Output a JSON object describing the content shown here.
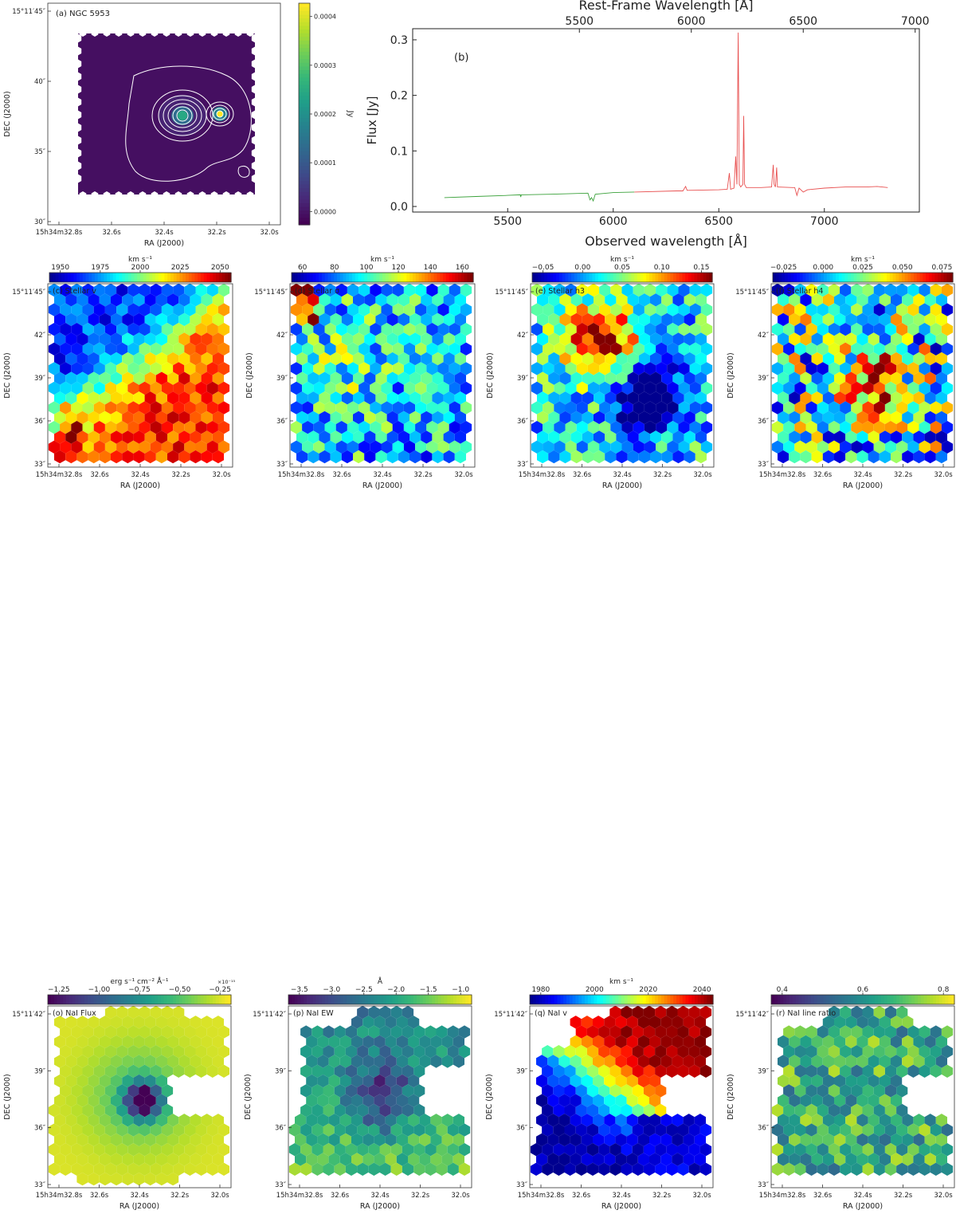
{
  "figure": "astro-multipanel",
  "colors": {
    "viridis": [
      "#440154",
      "#482878",
      "#3e4a89",
      "#31688e",
      "#26828e",
      "#1f9e89",
      "#35b779",
      "#6ece58",
      "#b5de2b",
      "#fde725"
    ],
    "jet": [
      "#00008f",
      "#0000ff",
      "#0080ff",
      "#00ffff",
      "#80ff80",
      "#ffff00",
      "#ff8000",
      "#ff0000",
      "#800000"
    ],
    "spectrum_blue_side": "#3aa13a",
    "spectrum_red_side": "#e85050",
    "contour": "#ffffff"
  },
  "chart_data": [
    {
      "id": "a",
      "type": "heatmap",
      "title": "(a) NGC 5953",
      "xlabel": "RA (J2000)",
      "ylabel": "DEC (J2000)",
      "xticks": [
        "15h34m32.8s",
        "32.6s",
        "32.4s",
        "32.2s",
        "32.0s"
      ],
      "yticks": [
        "15°11′45″",
        "40″",
        "35″",
        "30″"
      ],
      "colorbar": {
        "label": "Jy",
        "ticks": [
          "0.0000",
          "0.0001",
          "0.0002",
          "0.0003",
          "0.0004"
        ],
        "range": [
          0,
          0.00045
        ],
        "cmap": "viridis",
        "orientation": "vertical"
      },
      "contours": true
    },
    {
      "id": "b",
      "type": "line",
      "title": "(b)",
      "xlabel": "Observed wavelength [Å]",
      "ylabel": "Flux [Jy]",
      "top_xlabel": "Rest-Frame Wavelength [Å]",
      "xticks": [
        "5500",
        "6000",
        "6500",
        "7000"
      ],
      "top_xticks": [
        "5500",
        "6000",
        "6500",
        "7000"
      ],
      "yticks": [
        "0.0",
        "0.1",
        "0.2",
        "0.3"
      ],
      "xlim": [
        5050,
        7450
      ],
      "ylim": [
        -0.01,
        0.32
      ],
      "series": [
        {
          "color": "#3aa13a",
          "points": [
            [
              5200,
              0.016
            ],
            [
              5350,
              0.018
            ],
            [
              5500,
              0.02
            ],
            [
              5560,
              0.021
            ],
            [
              5562,
              0.017
            ],
            [
              5564,
              0.021
            ],
            [
              5700,
              0.022
            ],
            [
              5880,
              0.024
            ],
            [
              5890,
              0.012
            ],
            [
              5897,
              0.016
            ],
            [
              5905,
              0.01
            ],
            [
              5915,
              0.022
            ],
            [
              6000,
              0.025
            ],
            [
              6100,
              0.026
            ]
          ]
        },
        {
          "color": "#e85050",
          "points": [
            [
              6100,
              0.026
            ],
            [
              6300,
              0.028
            ],
            [
              6330,
              0.028
            ],
            [
              6343,
              0.036
            ],
            [
              6350,
              0.029
            ],
            [
              6500,
              0.03
            ],
            [
              6540,
              0.031
            ],
            [
              6550,
              0.06
            ],
            [
              6556,
              0.031
            ],
            [
              6572,
              0.033
            ],
            [
              6580,
              0.09
            ],
            [
              6586,
              0.04
            ],
            [
              6592,
              0.313
            ],
            [
              6597,
              0.04
            ],
            [
              6604,
              0.035
            ],
            [
              6614,
              0.04
            ],
            [
              6618,
              0.163
            ],
            [
              6622,
              0.04
            ],
            [
              6630,
              0.034
            ],
            [
              6700,
              0.034
            ],
            [
              6750,
              0.035
            ],
            [
              6758,
              0.075
            ],
            [
              6762,
              0.04
            ],
            [
              6768,
              0.035
            ],
            [
              6774,
              0.07
            ],
            [
              6778,
              0.035
            ],
            [
              6850,
              0.034
            ],
            [
              6860,
              0.034
            ],
            [
              6870,
              0.02
            ],
            [
              6880,
              0.033
            ],
            [
              6900,
              0.026
            ],
            [
              6920,
              0.03
            ],
            [
              7000,
              0.033
            ],
            [
              7100,
              0.035
            ],
            [
              7200,
              0.035
            ],
            [
              7250,
              0.036
            ],
            [
              7300,
              0.034
            ]
          ]
        }
      ]
    },
    {
      "id": "c",
      "type": "heatmap",
      "title": "(c) Stellar v",
      "xlabel": "RA (J2000)",
      "ylabel": "DEC (J2000)",
      "xticks": [
        "15h34m32.8s",
        "32.6s",
        "32.4s",
        "32.2s",
        "32.0s"
      ],
      "yticks": [
        "15°11′45″",
        "42″",
        "39″",
        "36″",
        "33″"
      ],
      "colorbar": {
        "label": "km s⁻¹",
        "ticks": [
          "1950",
          "1975",
          "2000",
          "2025",
          "2050"
        ],
        "range": [
          1930,
          2065
        ],
        "cmap": "jet"
      },
      "map_pattern": "rotation"
    },
    {
      "id": "d",
      "type": "heatmap",
      "title": "(d) Stellar σ",
      "xlabel": "RA (J2000)",
      "ylabel": "DEC (J2000)",
      "xticks": [
        "15h34m32.8s",
        "32.6s",
        "32.4s",
        "32.2s",
        "32.0s"
      ],
      "yticks": [
        "15°11′45″",
        "42″",
        "39″",
        "36″",
        "33″"
      ],
      "colorbar": {
        "label": "km s⁻¹",
        "ticks": [
          "60",
          "80",
          "100",
          "120",
          "140",
          "160"
        ],
        "range": [
          52,
          170
        ],
        "cmap": "jet"
      },
      "map_pattern": "dispersion"
    },
    {
      "id": "e",
      "type": "heatmap",
      "title": "(e) Stellar h3",
      "xlabel": "RA (J2000)",
      "ylabel": "DEC (J2000)",
      "xticks": [
        "15h34m32.8s",
        "32.6s",
        "32.4s",
        "32.2s",
        "32.0s"
      ],
      "yticks": [
        "15°11′45″",
        "42″",
        "39″",
        "36″",
        "33″"
      ],
      "colorbar": {
        "label": "km s⁻¹",
        "ticks": [
          "−0.05",
          "0.00",
          "0.05",
          "0.10",
          "0.15"
        ],
        "range": [
          -0.08,
          0.17
        ],
        "cmap": "jet"
      },
      "map_pattern": "h3"
    },
    {
      "id": "f",
      "type": "heatmap",
      "title": "(f) Stellar h4",
      "xlabel": "RA (J2000)",
      "ylabel": "DEC (J2000)",
      "xticks": [
        "15h34m32.8s",
        "32.6s",
        "32.4s",
        "32.2s",
        "32.0s"
      ],
      "yticks": [
        "15°11′45″",
        "42″",
        "39″",
        "36″",
        "33″"
      ],
      "colorbar": {
        "label": "km s⁻¹",
        "ticks": [
          "−0.025",
          "0.000",
          "0.025",
          "0.050",
          "0.075"
        ],
        "range": [
          -0.045,
          0.09
        ],
        "cmap": "jet"
      },
      "map_pattern": "h4"
    },
    {
      "id": "o",
      "type": "heatmap",
      "title": "(o) NaI Flux",
      "xlabel": "RA (J2000)",
      "ylabel": "DEC (J2000)",
      "xticks": [
        "15h34m32.8s",
        "32.6s",
        "32.4s",
        "32.2s",
        "32.0s"
      ],
      "yticks": [
        "15°11′42″",
        "39″",
        "36″",
        "33″"
      ],
      "colorbar": {
        "label": "erg s⁻¹ cm⁻² Å⁻¹",
        "ticks": [
          "−1.25",
          "−1.00",
          "−0.75",
          "−0.50",
          "−0.25"
        ],
        "range": [
          -1.35,
          -0.08
        ],
        "cmap": "viridis",
        "exponent": "×10⁻¹⁵"
      },
      "map_pattern": "naflux"
    },
    {
      "id": "p",
      "type": "heatmap",
      "title": "(p) NaI EW",
      "xlabel": "RA (J2000)",
      "ylabel": "DEC (J2000)",
      "xticks": [
        "15h34m32.8s",
        "32.6s",
        "32.4s",
        "32.2s",
        "32.0s"
      ],
      "yticks": [
        "15°11′42″",
        "39″",
        "36″",
        "33″"
      ],
      "colorbar": {
        "label": "Å",
        "ticks": [
          "−3.5",
          "−3.0",
          "−2.5",
          "−2.0",
          "−1.5",
          "−1.0"
        ],
        "range": [
          -3.9,
          -1.0
        ],
        "cmap": "viridis"
      },
      "map_pattern": "naew"
    },
    {
      "id": "q",
      "type": "heatmap",
      "title": "(q) NaI v",
      "xlabel": "RA (J2000)",
      "ylabel": "DEC (J2000)",
      "xticks": [
        "15h34m32.8s",
        "32.6s",
        "32.4s",
        "32.2s",
        "32.0s"
      ],
      "yticks": [
        "15°11′42″",
        "39″",
        "36″",
        "33″"
      ],
      "colorbar": {
        "label": "km s⁻¹",
        "ticks": [
          "1980",
          "2000",
          "2020",
          "2040"
        ],
        "range": [
          1965,
          2045
        ],
        "cmap": "jet"
      },
      "map_pattern": "nav"
    },
    {
      "id": "r",
      "type": "heatmap",
      "title": "(r) NaI line ratio",
      "xlabel": "RA (J2000)",
      "ylabel": "DEC (J2000)",
      "xticks": [
        "15h34m32.8s",
        "32.6s",
        "32.4s",
        "32.2s",
        "32.0s"
      ],
      "yticks": [
        "15°11′42″",
        "39″",
        "36″",
        "33″"
      ],
      "colorbar": {
        "label": "",
        "ticks": [
          "0.4",
          "0.6",
          "0.8"
        ],
        "range": [
          0.25,
          0.95
        ],
        "cmap": "viridis"
      },
      "map_pattern": "naratio"
    }
  ]
}
